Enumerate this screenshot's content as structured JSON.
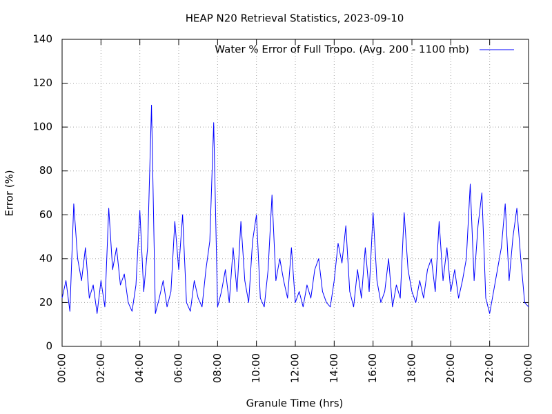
{
  "chart_data": {
    "type": "line",
    "title": "HEAP N20 Retrieval Statistics, 2023-09-10",
    "xlabel": "Granule Time (hrs)",
    "ylabel": "Error (%)",
    "x": [
      0,
      0.2,
      0.4,
      0.6,
      0.8,
      1,
      1.2,
      1.4,
      1.6,
      1.8,
      2,
      2.2,
      2.4,
      2.6,
      2.8,
      3,
      3.2,
      3.4,
      3.6,
      3.8,
      4,
      4.2,
      4.4,
      4.6,
      4.8,
      5,
      5.2,
      5.4,
      5.6,
      5.8,
      6,
      6.2,
      6.4,
      6.6,
      6.8,
      7,
      7.2,
      7.4,
      7.6,
      7.8,
      8,
      8.2,
      8.4,
      8.6,
      8.8,
      9,
      9.2,
      9.4,
      9.6,
      9.8,
      10,
      10.2,
      10.4,
      10.6,
      10.8,
      11,
      11.2,
      11.4,
      11.6,
      11.8,
      12,
      12.2,
      12.4,
      12.6,
      12.8,
      13,
      13.2,
      13.4,
      13.6,
      13.8,
      14,
      14.2,
      14.4,
      14.6,
      14.8,
      15,
      15.2,
      15.4,
      15.6,
      15.8,
      16,
      16.2,
      16.4,
      16.6,
      16.8,
      17,
      17.2,
      17.4,
      17.6,
      17.8,
      18,
      18.2,
      18.4,
      18.6,
      18.8,
      19,
      19.2,
      19.4,
      19.6,
      19.8,
      20,
      20.2,
      20.4,
      20.6,
      20.8,
      21,
      21.2,
      21.4,
      21.6,
      21.8,
      22,
      22.2,
      22.4,
      22.6,
      22.8,
      23,
      23.2,
      23.4,
      23.6,
      23.8,
      24
    ],
    "series": [
      {
        "name": "Water % Error of Full Tropo. (Avg. 200 - 1100 mb)",
        "color": "#0000ff",
        "values": [
          22,
          30,
          16,
          65,
          40,
          30,
          45,
          22,
          28,
          15,
          30,
          18,
          63,
          35,
          45,
          28,
          33,
          20,
          16,
          28,
          62,
          25,
          45,
          110,
          15,
          22,
          30,
          18,
          25,
          57,
          35,
          60,
          20,
          16,
          30,
          22,
          18,
          35,
          48,
          102,
          18,
          25,
          35,
          20,
          45,
          25,
          57,
          30,
          20,
          48,
          60,
          22,
          18,
          35,
          69,
          30,
          40,
          30,
          22,
          45,
          20,
          25,
          18,
          28,
          22,
          35,
          40,
          25,
          20,
          18,
          30,
          47,
          38,
          55,
          25,
          18,
          35,
          22,
          45,
          25,
          61,
          30,
          20,
          25,
          40,
          18,
          28,
          22,
          61,
          35,
          25,
          20,
          30,
          22,
          35,
          40,
          25,
          57,
          30,
          45,
          25,
          35,
          22,
          30,
          40,
          74,
          30,
          55,
          70,
          22,
          15,
          25,
          35,
          45,
          65,
          30,
          50,
          63,
          40,
          20,
          18
        ]
      }
    ],
    "xlim": [
      0,
      24
    ],
    "xticks": [
      {
        "value": 0,
        "label": "00:00"
      },
      {
        "value": 2,
        "label": "02:00"
      },
      {
        "value": 4,
        "label": "04:00"
      },
      {
        "value": 6,
        "label": "06:00"
      },
      {
        "value": 8,
        "label": "08:00"
      },
      {
        "value": 10,
        "label": "10:00"
      },
      {
        "value": 12,
        "label": "12:00"
      },
      {
        "value": 14,
        "label": "14:00"
      },
      {
        "value": 16,
        "label": "16:00"
      },
      {
        "value": 18,
        "label": "18:00"
      },
      {
        "value": 20,
        "label": "20:00"
      },
      {
        "value": 22,
        "label": "22:00"
      },
      {
        "value": 24,
        "label": "00:00"
      }
    ],
    "ylim": [
      0,
      140
    ],
    "yticks": [
      0,
      20,
      40,
      60,
      80,
      100,
      120,
      140
    ],
    "grid": true,
    "legend": "top-right"
  }
}
